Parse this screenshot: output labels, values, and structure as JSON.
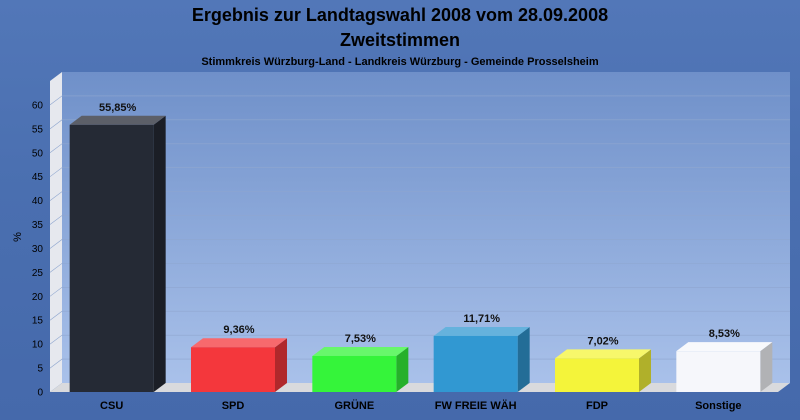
{
  "chart_data": {
    "type": "bar",
    "title": "Ergebnis zur Landtagswahl 2008 vom 28.09.2008",
    "title_line2": "Zweitstimmen",
    "subtitle": "Stimmkreis Würzburg-Land - Landkreis Würzburg - Gemeinde Prosselsheim",
    "xlabel": "",
    "ylabel": "%",
    "ylim": [
      0,
      65
    ],
    "yticks": [
      "0",
      "5",
      "10",
      "15",
      "20",
      "25",
      "30",
      "35",
      "40",
      "45",
      "50",
      "55",
      "60"
    ],
    "grid": true,
    "categories": [
      "CSU",
      "SPD",
      "GRÜNE",
      "FW FREIE WÄH",
      "FDP",
      "Sonstige"
    ],
    "values": [
      55.85,
      9.36,
      7.53,
      11.71,
      7.02,
      8.53
    ],
    "value_labels": [
      "55,85%",
      "9,36%",
      "7,53%",
      "11,71%",
      "7,02%",
      "8,53%"
    ],
    "colors": [
      "#252a35",
      "#f4373c",
      "#35f43a",
      "#3198d2",
      "#f4f43a",
      "#f6f7fb"
    ]
  }
}
